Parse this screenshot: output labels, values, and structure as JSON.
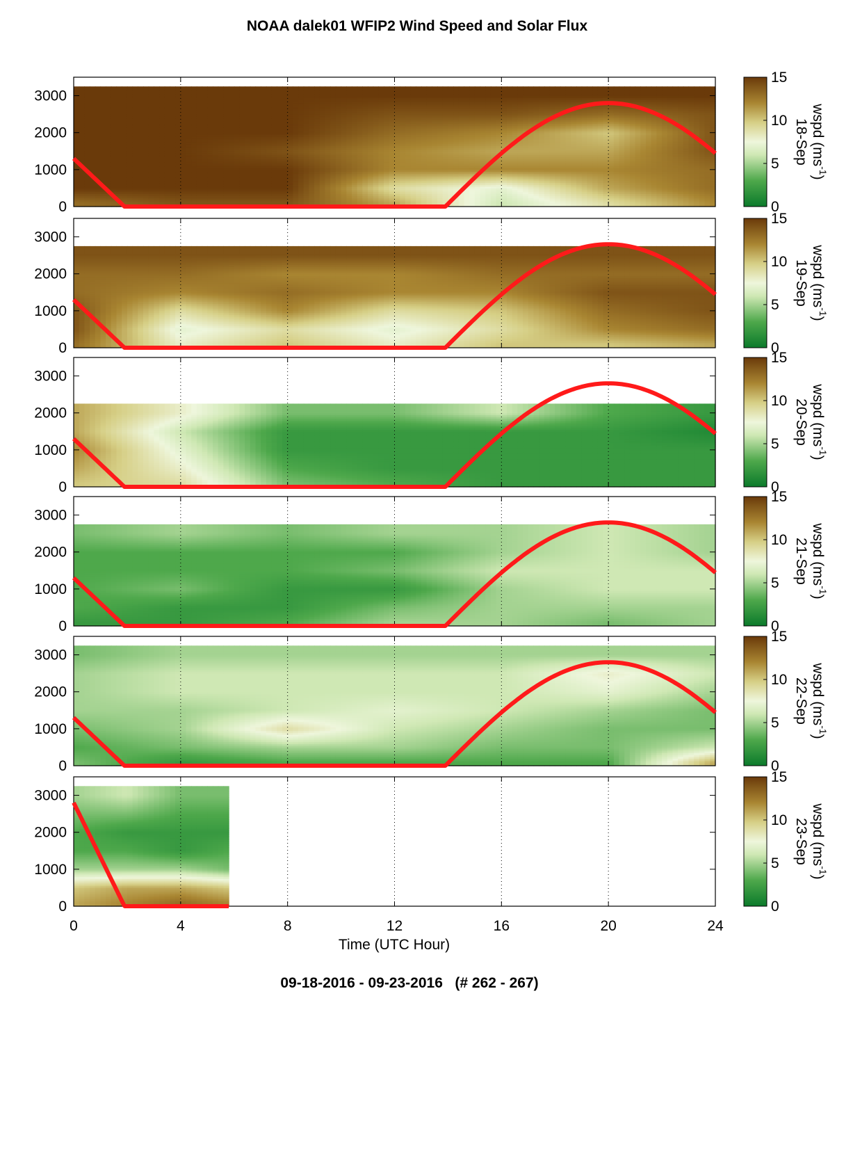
{
  "title": "NOAA dalek01 WFIP2 Wind Speed and Solar Flux",
  "footer": "09-18-2016 - 09-23-2016   (# 262 - 267)",
  "chart_data": {
    "type": "heatmap",
    "title": "NOAA dalek01 WFIP2 Wind Speed and Solar Flux",
    "xlabel": "Time (UTC Hour)",
    "xlim": [
      0,
      24
    ],
    "xticks": [
      "0",
      "4",
      "8",
      "12",
      "16",
      "20",
      "24"
    ],
    "ylim": [
      0,
      3500
    ],
    "yticks": [
      "0",
      "1000",
      "2000",
      "3000"
    ],
    "grid": "vertical dotted lines at 4-hour intervals",
    "colorbar": {
      "label": "wspd (ms",
      "label_sup": "-1",
      "label_close": ")",
      "ticks": [
        "0",
        "5",
        "10",
        "15"
      ],
      "range": [
        0,
        15
      ],
      "colors": [
        "#0b7a2b",
        "#eef6dc",
        "#6a3a0a"
      ]
    },
    "line_color": "#ff1a1a",
    "panels": [
      {
        "date": "18-Sep",
        "data_end_hour": 24,
        "solar_flux_curve": {
          "x": [
            0,
            1.9,
            13.9,
            20,
            24
          ],
          "y": [
            1300,
            0,
            0,
            2800,
            1500
          ]
        },
        "wspd_profile_ms": {
          "height": [
            100,
            500,
            1000,
            1500,
            2000,
            2500,
            3000
          ],
          "x": [
            0,
            4,
            8,
            12,
            16,
            20,
            24
          ],
          "values": [
            [
              13,
              14,
              14,
              11,
              6,
              9,
              12
            ],
            [
              15,
              15,
              15,
              9,
              7,
              11,
              13
            ],
            [
              15,
              15,
              15,
              12,
              12,
              12,
              13
            ],
            [
              15,
              15,
              14,
              12,
              11,
              11,
              14
            ],
            [
              15,
              15,
              15,
              13,
              12,
              10,
              14
            ],
            [
              15,
              15,
              15,
              14,
              14,
              13,
              14
            ],
            [
              15,
              15,
              15,
              15,
              15,
              15,
              15
            ]
          ]
        }
      },
      {
        "date": "19-Sep",
        "data_end_hour": 24,
        "solar_flux_curve": {
          "x": [
            0,
            1.9,
            13.9,
            20,
            24
          ],
          "y": [
            1300,
            0,
            0,
            2800,
            1500
          ]
        },
        "wspd_profile_ms": {
          "height": [
            100,
            500,
            1000,
            1500,
            2000,
            2500
          ],
          "x": [
            0,
            4,
            8,
            12,
            16,
            20,
            24
          ],
          "values": [
            [
              13,
              8,
              10,
              8,
              10,
              10,
              11
            ],
            [
              14,
              7,
              9,
              7,
              9,
              12,
              13
            ],
            [
              14,
              9,
              12,
              9,
              10,
              13,
              14
            ],
            [
              13,
              12,
              13,
              12,
              12,
              14,
              14
            ],
            [
              13,
              13,
              12,
              12,
              13,
              13,
              13
            ],
            [
              14,
              14,
              14,
              14,
              14,
              14,
              14
            ]
          ]
        }
      },
      {
        "date": "20-Sep",
        "data_end_hour": 24,
        "solar_flux_curve": {
          "x": [
            0,
            1.9,
            13.9,
            20,
            24
          ],
          "y": [
            1300,
            0,
            0,
            2800,
            1500
          ]
        },
        "wspd_profile_ms": {
          "height": [
            100,
            500,
            1000,
            1500,
            2000
          ],
          "x": [
            0,
            4,
            8,
            12,
            16,
            20,
            24
          ],
          "values": [
            [
              10,
              9,
              4,
              3,
              2,
              2,
              2
            ],
            [
              11,
              8,
              3,
              2,
              2,
              2,
              2
            ],
            [
              12,
              7,
              2,
              2,
              2,
              2,
              2
            ],
            [
              11,
              6,
              2,
              2,
              2,
              2,
              1
            ],
            [
              11,
              8,
              4,
              4,
              6,
              3,
              2
            ]
          ]
        }
      },
      {
        "date": "21-Sep",
        "data_end_hour": 24,
        "solar_flux_curve": {
          "x": [
            0,
            1.9,
            13.9,
            20,
            24
          ],
          "y": [
            1300,
            0,
            0,
            2800,
            1500
          ]
        },
        "wspd_profile_ms": {
          "height": [
            100,
            500,
            1000,
            1500,
            2000,
            2500
          ],
          "x": [
            0,
            4,
            8,
            12,
            16,
            20,
            24
          ],
          "values": [
            [
              2,
              2,
              3,
              5,
              5,
              4,
              5
            ],
            [
              3,
              2,
              2,
              4,
              5,
              5,
              5
            ],
            [
              3,
              4,
              2,
              2,
              5,
              6,
              6
            ],
            [
              3,
              3,
              3,
              4,
              6,
              6,
              6
            ],
            [
              3,
              3,
              3,
              3,
              5,
              6,
              5
            ],
            [
              4,
              5,
              4,
              5,
              5,
              6,
              5
            ]
          ]
        }
      },
      {
        "date": "22-Sep",
        "data_end_hour": 24,
        "solar_flux_curve": {
          "x": [
            0,
            1.9,
            13.9,
            20,
            24
          ],
          "y": [
            1300,
            0,
            0,
            2800,
            1500
          ]
        },
        "wspd_profile_ms": {
          "height": [
            100,
            500,
            1000,
            1500,
            2000,
            2500,
            3000
          ],
          "x": [
            0,
            4,
            8,
            12,
            16,
            20,
            24
          ],
          "values": [
            [
              4,
              2,
              3,
              3,
              3,
              3,
              11
            ],
            [
              3,
              4,
              5,
              5,
              4,
              4,
              6
            ],
            [
              4,
              5,
              9,
              6,
              5,
              4,
              4
            ],
            [
              5,
              5,
              6,
              7,
              6,
              5,
              4
            ],
            [
              5,
              6,
              6,
              6,
              6,
              7,
              5
            ],
            [
              5,
              6,
              6,
              6,
              6,
              8,
              6
            ],
            [
              4,
              5,
              5,
              5,
              5,
              5,
              5
            ]
          ]
        }
      },
      {
        "date": "23-Sep",
        "data_end_hour": 5.8,
        "solar_flux_curve": {
          "x": [
            0,
            1.9,
            5.8
          ],
          "y": [
            2800,
            0,
            0
          ]
        },
        "wspd_profile_ms": {
          "height": [
            100,
            500,
            1000,
            1500,
            2000,
            2500,
            3000
          ],
          "x": [
            0,
            2,
            4,
            5.8
          ],
          "values": [
            [
              11,
              12,
              13,
              12
            ],
            [
              10,
              11,
              11,
              10
            ],
            [
              5,
              5,
              5,
              4
            ],
            [
              3,
              3,
              2,
              3
            ],
            [
              3,
              2,
              2,
              2
            ],
            [
              4,
              4,
              3,
              3
            ],
            [
              5,
              6,
              4,
              4
            ]
          ]
        }
      }
    ]
  }
}
